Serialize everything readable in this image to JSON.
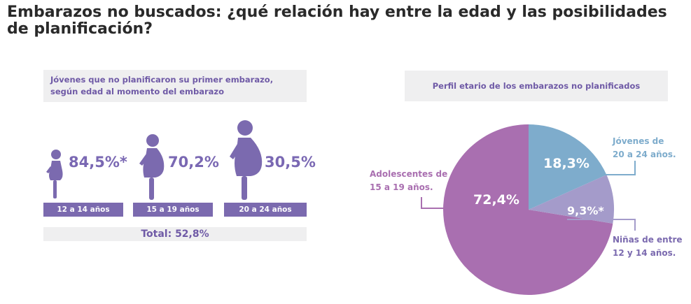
{
  "title": "Embarazos no buscados: ¿qué relación hay entre la edad y las posibilidades de planificación?",
  "left_panel": {
    "heading": "Jóvenes que no planificaron su primer embarazo, según edad al momento del embarazo",
    "groups": [
      {
        "age_label": "12 a 14 años",
        "pct_label": "84,5%*"
      },
      {
        "age_label": "15 a 19 años",
        "pct_label": "70,2%"
      },
      {
        "age_label": "20 a 24 años",
        "pct_label": "30,5%"
      }
    ],
    "total_label": "Total: 52,8%"
  },
  "right_panel": {
    "heading": "Perfil etario de los embarazos no planificados"
  },
  "colors": {
    "purple": "#7b6aaf",
    "pie_adolescentes": "#a96fb0",
    "pie_jovenes": "#7eaccc",
    "pie_ninas": "#a49bca",
    "panel_bg": "#efeff0"
  },
  "chart_data": [
    {
      "type": "bar",
      "title": "Jóvenes que no planificaron su primer embarazo, según edad al momento del embarazo",
      "categories": [
        "12 a 14 años",
        "15 a 19 años",
        "20 a 24 años"
      ],
      "values": [
        84.5,
        70.2,
        30.5
      ],
      "value_labels": [
        "84,5%*",
        "70,2%",
        "30,5%"
      ],
      "total": 52.8,
      "total_label": "Total: 52,8%"
    },
    {
      "type": "pie",
      "title": "Perfil etario de los embarazos no planificados",
      "slices": [
        {
          "label_line1": "Jóvenes de",
          "label_line2": "20 a 24 años.",
          "value": 18.3,
          "value_label": "18,3%",
          "color": "#7eaccc"
        },
        {
          "label_line1": "Niñas de entre",
          "label_line2": "12 y 14 años.",
          "value": 9.3,
          "value_label": "9,3%*",
          "color": "#a49bca"
        },
        {
          "label_line1": "Adolescentes de",
          "label_line2": "15 a 19 años.",
          "value": 72.4,
          "value_label": "72,4%",
          "color": "#a96fb0"
        }
      ]
    }
  ]
}
